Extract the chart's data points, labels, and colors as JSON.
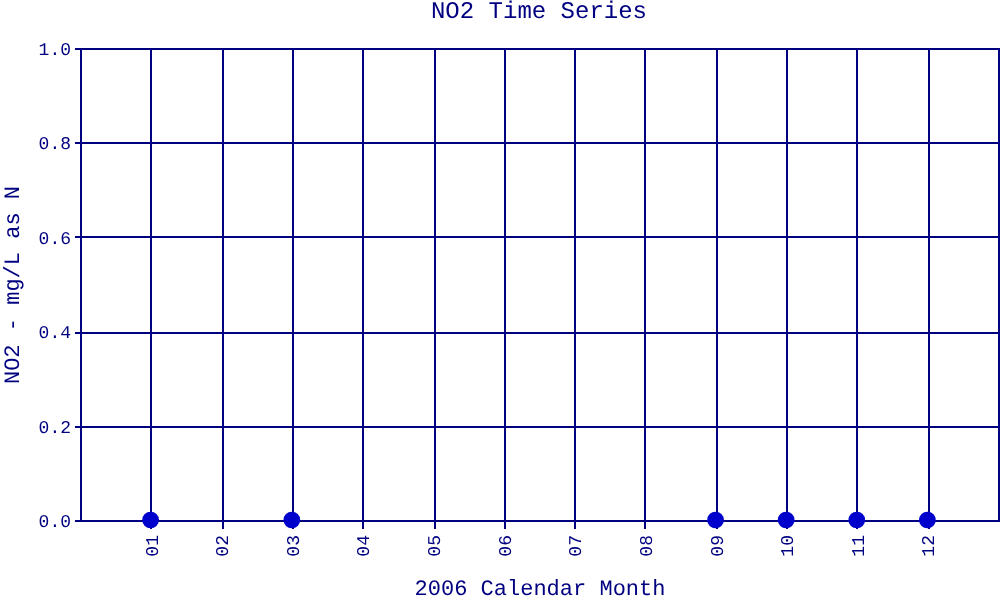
{
  "chart_data": {
    "type": "scatter",
    "title": "NO2 Time Series",
    "xlabel": "2006 Calendar Month",
    "ylabel": "NO2 - mg/L as N",
    "categories": [
      "01",
      "02",
      "03",
      "04",
      "05",
      "06",
      "07",
      "08",
      "09",
      "10",
      "11",
      "12"
    ],
    "series": [
      {
        "color": "#0000cc",
        "values": [
          0,
          null,
          0,
          null,
          null,
          null,
          null,
          null,
          0,
          0,
          0,
          0
        ]
      }
    ],
    "ylim": [
      0,
      1
    ],
    "yticks": [
      {
        "value": 0,
        "label": "0.0"
      },
      {
        "value": 0.2,
        "label": "0.2"
      },
      {
        "value": 0.4,
        "label": "0.4"
      },
      {
        "value": 0.6,
        "label": "0.6"
      },
      {
        "value": 0.8,
        "label": "0.8"
      },
      {
        "value": 1,
        "label": "1.0"
      }
    ],
    "grid": true,
    "marker": "circle"
  }
}
